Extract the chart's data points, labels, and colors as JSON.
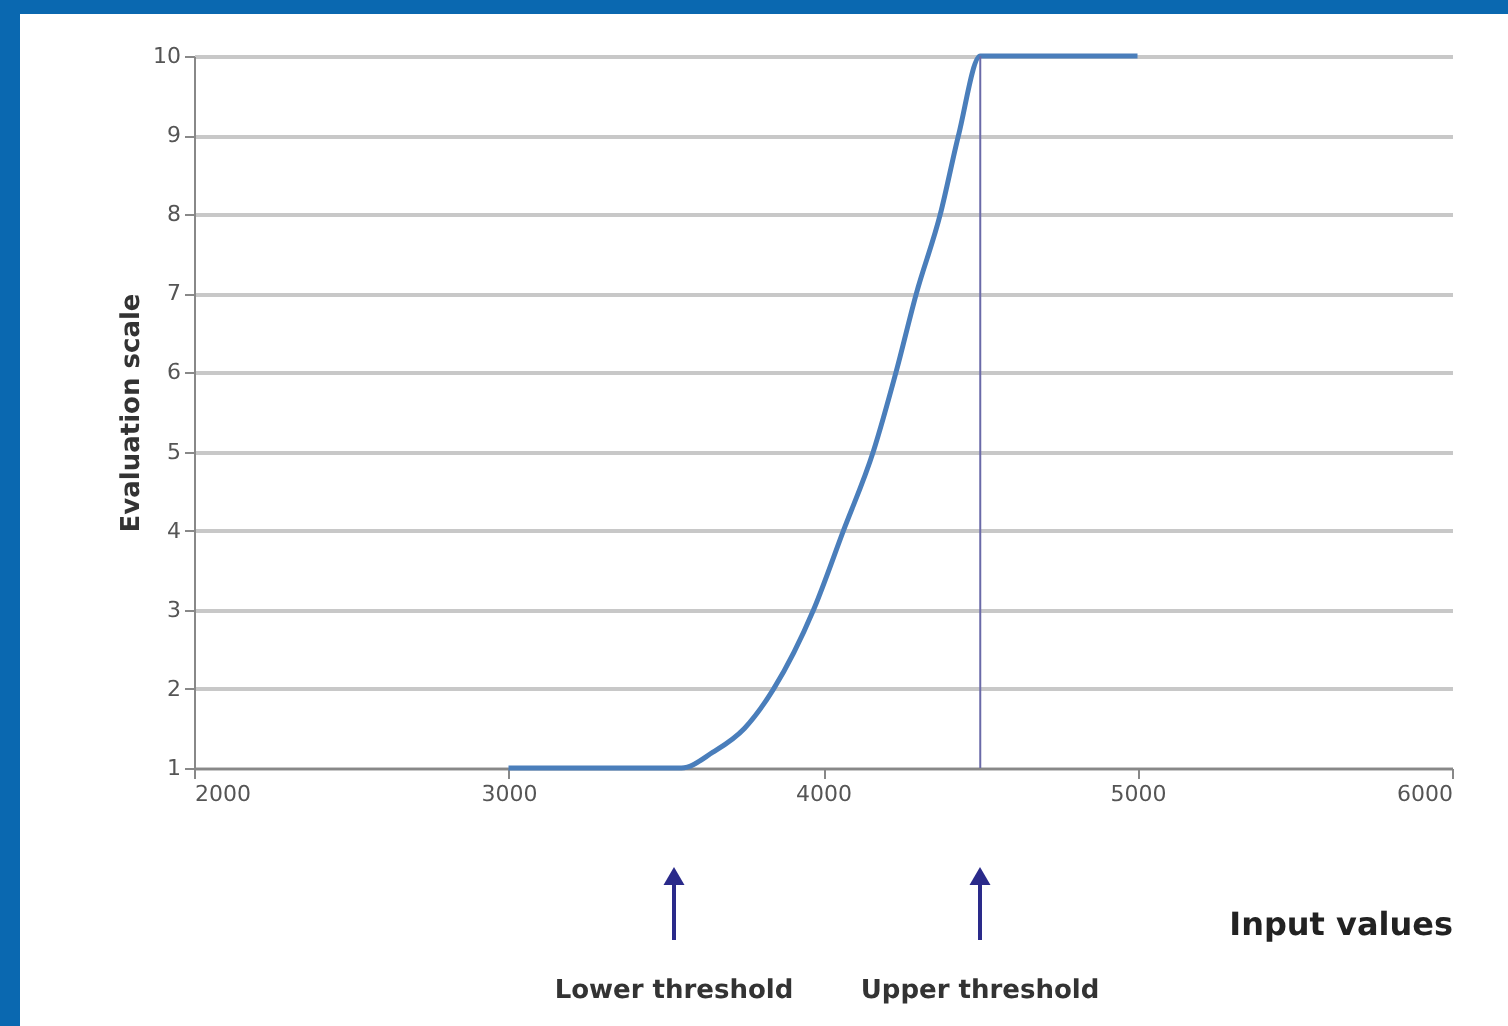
{
  "chart_data": {
    "type": "line",
    "xlabel": "Input values",
    "ylabel": "Evaluation scale",
    "x": [
      3000,
      3550,
      3650,
      3750,
      3843,
      3970,
      4065,
      4160,
      4232,
      4297,
      4373,
      4431,
      4500,
      5000
    ],
    "series": [
      {
        "color": "#4a7ebb",
        "values": [
          1,
          1,
          1.2,
          1.5,
          2,
          3,
          4,
          5,
          6,
          7,
          8,
          9,
          10,
          10
        ]
      }
    ],
    "xlim": [
      2000,
      6000
    ],
    "xticks": [
      2000,
      3000,
      4000,
      5000,
      6000
    ],
    "ylim": [
      1,
      10
    ],
    "yticks": [
      1,
      2,
      3,
      4,
      5,
      6,
      7,
      8,
      9,
      10
    ],
    "grid": "y",
    "marker": "none",
    "ref_lines": [
      {
        "axis": "x",
        "value": 4500,
        "color": "#6a6aa8"
      }
    ],
    "annotations": [
      "Lower threshold",
      "Upper threshold"
    ]
  }
}
